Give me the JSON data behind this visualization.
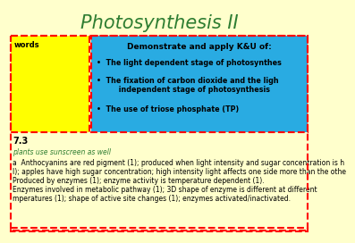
{
  "title": "Photosynthesis II",
  "title_color": "#2e7d32",
  "bg_color": "#ffffcc",
  "title_fontsize": 15,
  "left_box_text": "words",
  "left_box_bg": "#ffff00",
  "left_box_border": "#ff0000",
  "right_box_title": "Demonstrate and apply K&U of:",
  "right_box_bullets": [
    "The light dependent stage of photosynthes...",
    "The fixation of carbon dioxide and the ligh\n    independent stage of photosynthesis",
    "The use of triose phosphate (TP)"
  ],
  "right_box_bg": "#29abe2",
  "right_box_border": "#ff0000",
  "section_label": "7.3",
  "section_label_color": "#000000",
  "hint_text": "plants use sunscreen as well",
  "hint_color": "#2e7d32",
  "body_lines": [
    "a  Anthocyanins are red pigment (1); produced when light intensity and sugar concentration is h",
    "l); apples have high sugar concentration; high intensity light affects one side more than the othe",
    "Produced by enzymes (1); enzyme activity is temperature dependent (1).",
    "Enzymes involved in metabolic pathway (1); 3D shape of enzyme is different at different",
    "mperatures (1); shape of active site changes (1); enzymes activated/inactivated."
  ],
  "body_color": "#000000",
  "body_fontsize": 5.5,
  "outer_border_color": "#ff0000"
}
